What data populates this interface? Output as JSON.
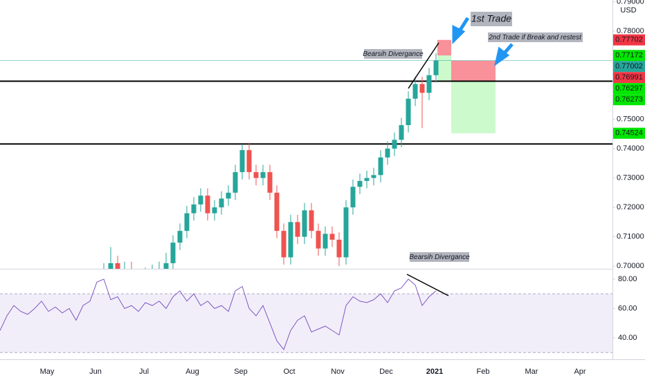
{
  "chart_data": {
    "type": "candlestick",
    "currency": "USD",
    "categories": [
      "May",
      "Jun",
      "Jul",
      "Aug",
      "Sep",
      "Oct",
      "Nov",
      "Dec",
      "2021",
      "Feb",
      "Mar",
      "Apr"
    ],
    "open": [
      0.696,
      0.6985,
      0.701,
      0.6975,
      0.699,
      0.696,
      0.695,
      0.697,
      0.698,
      0.699,
      0.701,
      0.708,
      0.712,
      0.718,
      0.721,
      0.724,
      0.718,
      0.72,
      0.723,
      0.725,
      0.732,
      0.7395,
      0.732,
      0.73,
      0.732,
      0.725,
      0.712,
      0.703,
      0.715,
      0.71,
      0.719,
      0.712,
      0.706,
      0.711,
      0.709,
      0.703,
      0.72,
      0.727,
      0.729,
      0.73,
      0.731,
      0.737,
      0.74,
      0.743,
      0.748,
      0.757,
      0.762,
      0.759,
      0.765
    ],
    "high": [
      0.701,
      0.7065,
      0.7035,
      0.7015,
      0.7015,
      0.6985,
      0.6995,
      0.7005,
      0.7015,
      0.7045,
      0.7105,
      0.7145,
      0.7205,
      0.7235,
      0.7265,
      0.7265,
      0.7225,
      0.7255,
      0.7275,
      0.7345,
      0.7415,
      0.742,
      0.7345,
      0.7345,
      0.7345,
      0.7275,
      0.7145,
      0.7175,
      0.7175,
      0.7215,
      0.7215,
      0.7145,
      0.7135,
      0.7135,
      0.7115,
      0.7225,
      0.7295,
      0.7315,
      0.7325,
      0.7335,
      0.7395,
      0.7425,
      0.7455,
      0.7505,
      0.7595,
      0.7645,
      0.7645,
      0.7675,
      0.7725
    ],
    "low": [
      0.6935,
      0.696,
      0.695,
      0.695,
      0.6935,
      0.6925,
      0.6925,
      0.6945,
      0.6955,
      0.6965,
      0.6985,
      0.7055,
      0.7095,
      0.7155,
      0.7185,
      0.7155,
      0.7155,
      0.7175,
      0.7205,
      0.7225,
      0.7295,
      0.7295,
      0.7275,
      0.7275,
      0.7225,
      0.7095,
      0.7005,
      0.7005,
      0.7075,
      0.7075,
      0.7095,
      0.7035,
      0.7035,
      0.7065,
      0.7,
      0.7005,
      0.7175,
      0.7245,
      0.7265,
      0.7275,
      0.7285,
      0.7345,
      0.7375,
      0.7405,
      0.7455,
      0.7545,
      0.747,
      0.7565,
      0.7625
    ],
    "close": [
      0.6985,
      0.701,
      0.6975,
      0.699,
      0.696,
      0.695,
      0.697,
      0.698,
      0.699,
      0.701,
      0.708,
      0.712,
      0.718,
      0.721,
      0.724,
      0.718,
      0.72,
      0.723,
      0.725,
      0.732,
      0.7395,
      0.732,
      0.73,
      0.732,
      0.725,
      0.712,
      0.703,
      0.715,
      0.71,
      0.719,
      0.712,
      0.706,
      0.711,
      0.709,
      0.703,
      0.72,
      0.727,
      0.729,
      0.73,
      0.731,
      0.737,
      0.74,
      0.743,
      0.748,
      0.757,
      0.762,
      0.759,
      0.765,
      0.77
    ],
    "up_color": "#26a69a",
    "down_color": "#ef5350",
    "ylim": [
      0.6991,
      0.7906
    ],
    "yticks": [
      {
        "value": 0.7,
        "label": "0.70000"
      },
      {
        "value": 0.71,
        "label": "0.71000"
      },
      {
        "value": 0.72,
        "label": "0.72000"
      },
      {
        "value": 0.73,
        "label": "0.73000"
      },
      {
        "value": 0.74,
        "label": "0.74000"
      },
      {
        "value": 0.75,
        "label": "0.75000"
      },
      {
        "value": 0.76,
        "label": "0.76000"
      },
      {
        "value": 0.77,
        "label": "0.77000"
      },
      {
        "value": 0.78,
        "label": "0.78000"
      },
      {
        "value": 0.79,
        "label": "0.79000"
      }
    ],
    "price_labels": [
      {
        "value": 0.77702,
        "color": "#f23645"
      },
      {
        "value": 0.77172,
        "color": "#00e600"
      },
      {
        "value": 0.77002,
        "color": "#26a69a"
      },
      {
        "value": 0.76991,
        "color": "#f23645"
      },
      {
        "value": 0.76297,
        "color": "#00e600"
      },
      {
        "value": 0.76273,
        "color": "#00e600"
      },
      {
        "value": 0.74524,
        "color": "#00e600"
      }
    ],
    "levels": [
      0.7416
    ],
    "rsi": {
      "values": [
        45,
        55,
        62,
        58,
        56,
        60,
        65,
        58,
        61,
        57,
        60,
        52,
        62,
        65,
        78,
        80,
        66,
        68,
        60,
        62,
        58,
        64,
        62,
        65,
        60,
        68,
        72,
        65,
        70,
        62,
        65,
        60,
        62,
        58,
        72,
        75,
        60,
        55,
        62,
        50,
        38,
        32,
        45,
        52,
        55,
        44,
        46,
        48,
        45,
        42,
        62,
        68,
        65,
        64,
        66,
        70,
        64,
        72,
        74,
        80,
        76,
        62,
        68,
        72
      ],
      "color": "#7e57c2",
      "ylim": [
        25.4,
        86.6
      ],
      "yticks": [
        {
          "value": 40,
          "label": "40.00"
        },
        {
          "value": 60,
          "label": "60.00"
        },
        {
          "value": 80,
          "label": "80.00"
        }
      ],
      "band": [
        30,
        70
      ]
    },
    "annotations": {
      "first_trade": "1st Trade",
      "second_trade": "2nd Trade if Break and restest",
      "divergence_price": "Bearsih Divergance",
      "divergence_rsi": "Bearsih Divergance"
    }
  }
}
